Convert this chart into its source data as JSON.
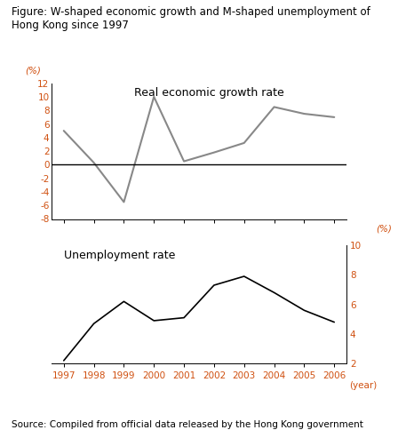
{
  "title": "Figure: W-shaped economic growth and M-shaped unemployment of\nHong Kong since 1997",
  "source": "Source: Compiled from official data released by the Hong Kong government",
  "years": [
    1997,
    1998,
    1999,
    2000,
    2001,
    2002,
    2003,
    2004,
    2005,
    2006
  ],
  "growth_rate": [
    5.0,
    0.3,
    -5.5,
    10.0,
    0.5,
    1.8,
    3.2,
    8.5,
    7.5,
    7.0
  ],
  "unemployment_rate": [
    2.2,
    4.7,
    6.2,
    4.9,
    5.1,
    7.3,
    7.9,
    6.8,
    5.6,
    4.8
  ],
  "growth_ylabel": "(%)",
  "unemployment_ylabel": "(%)",
  "growth_label": "Real economic growth rate",
  "unemployment_label": "Unemployment rate",
  "growth_ylim": [
    -8,
    12
  ],
  "growth_yticks": [
    -8,
    -6,
    -4,
    -2,
    0,
    2,
    4,
    6,
    8,
    10,
    12
  ],
  "growth_ytick_labels": [
    "-8",
    "-6",
    "-4",
    "-2",
    "0",
    "2",
    "4",
    "6",
    "8",
    "10",
    "12"
  ],
  "unemployment_ylim": [
    2,
    10
  ],
  "unemployment_yticks": [
    2,
    4,
    6,
    8,
    10
  ],
  "growth_line_color": "#888888",
  "unemployment_line_color": "#000000",
  "orange_color": "#d05010",
  "background_color": "#ffffff",
  "title_fontsize": 8.5,
  "label_fontsize": 9,
  "tick_fontsize": 7.5,
  "source_fontsize": 7.5
}
